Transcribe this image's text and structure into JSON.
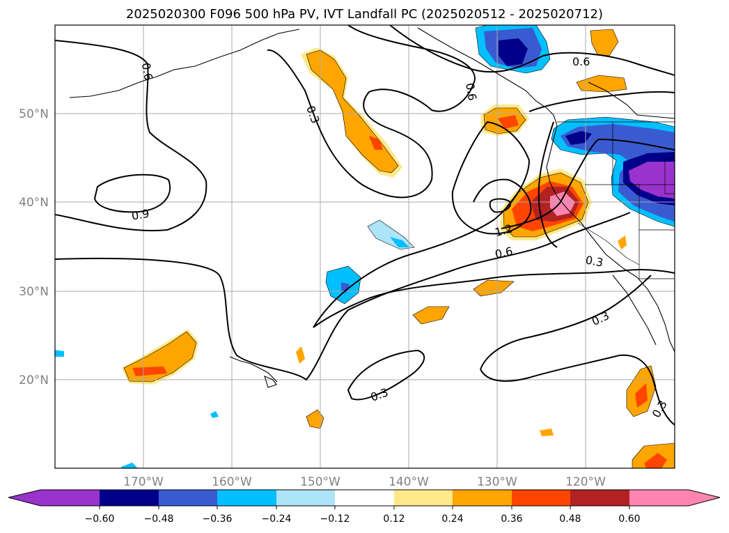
{
  "title": "2025020300 F096 500 hPa PV, IVT Landfall PC (2025020512 - 2025020712)",
  "map": {
    "lon_ticks": [
      "170°W",
      "160°W",
      "150°W",
      "140°W",
      "130°W",
      "120°W"
    ],
    "lat_ticks": [
      "50°N",
      "40°N",
      "30°N",
      "20°N"
    ],
    "gridlines": true
  },
  "contour_labels": [
    "0.6",
    "0.6",
    "0.6",
    "0.3",
    "0.9",
    "1.2",
    "0.6",
    "0.3",
    "0.3",
    "0.3",
    "0.3"
  ],
  "colorbar": {
    "ticks": [
      "−0.60",
      "−0.48",
      "−0.36",
      "−0.24",
      "−0.12",
      "0.12",
      "0.24",
      "0.36",
      "0.48",
      "0.60"
    ],
    "colors": [
      "#9933cc",
      "#00008b",
      "#3a5bd0",
      "#00bfff",
      "#aee4fa",
      "#ffffff",
      "#ffe98a",
      "#ffa500",
      "#ff4500",
      "#b22222",
      "#ff85b0"
    ]
  }
}
